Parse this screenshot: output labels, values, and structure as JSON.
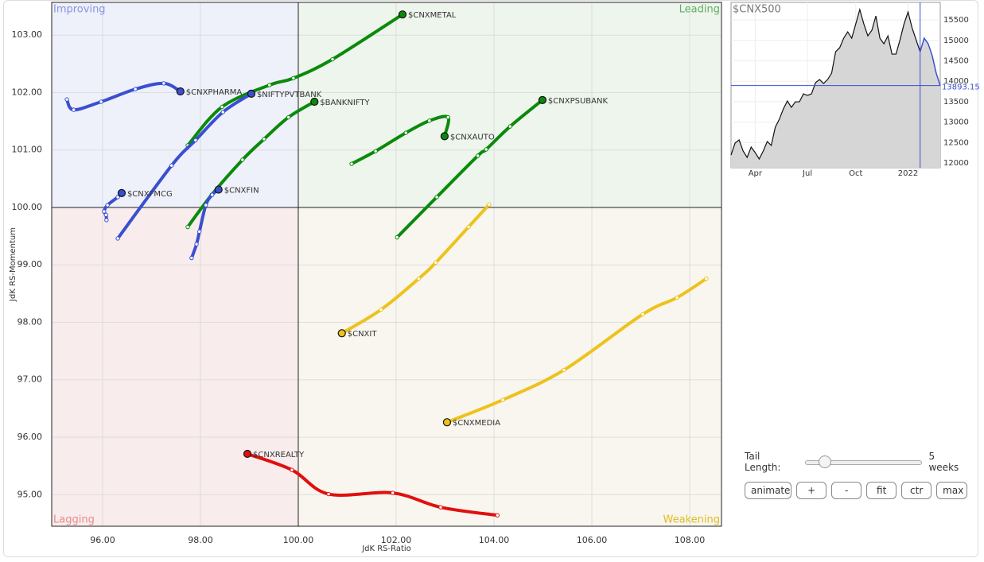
{
  "chart_data": [
    {
      "type": "rrg",
      "xlabel": "JdK RS-Ratio",
      "ylabel": "JdK RS-Momentum",
      "quadrants": [
        {
          "name": "Improving",
          "color": "#8a94e0",
          "fill": "#eef0fa"
        },
        {
          "name": "Leading",
          "color": "#5fae5f",
          "fill": "#edf5ed"
        },
        {
          "name": "Lagging",
          "color": "#e88a8a",
          "fill": "#f8ecec"
        },
        {
          "name": "Weakening",
          "color": "#e2bb22",
          "fill": "#f8f6ee"
        }
      ],
      "xlim": [
        94.96,
        108.65
      ],
      "ylim": [
        94.45,
        103.57
      ],
      "center": [
        100,
        100
      ],
      "grid": true,
      "xticks": [
        {
          "value": 96,
          "label": "96.00"
        },
        {
          "value": 98,
          "label": "98.00"
        },
        {
          "value": 100,
          "label": "100.00"
        },
        {
          "value": 102,
          "label": "102.00"
        },
        {
          "value": 104,
          "label": "104.00"
        },
        {
          "value": 106,
          "label": "106.00"
        },
        {
          "value": 108,
          "label": "108.00"
        }
      ],
      "yticks": [
        {
          "value": 95,
          "label": "95.00"
        },
        {
          "value": 96,
          "label": "96.00"
        },
        {
          "value": 97,
          "label": "97.00"
        },
        {
          "value": 98,
          "label": "98.00"
        },
        {
          "value": 99,
          "label": "99.00"
        },
        {
          "value": 100,
          "label": "100.00"
        },
        {
          "value": 101,
          "label": "101.00"
        },
        {
          "value": 102,
          "label": "102.00"
        },
        {
          "value": 103,
          "label": "103.00"
        }
      ],
      "series": [
        {
          "name": "$CNXMETAL",
          "color": "#0a8a0a",
          "x": [
            97.74,
            98.44,
            99.41,
            99.9,
            100.7,
            102.13
          ],
          "y": [
            101.08,
            101.75,
            102.13,
            102.25,
            102.58,
            103.36
          ]
        },
        {
          "name": "$CNXPHARMA",
          "color": "#3a4fd0",
          "x": [
            95.27,
            95.41,
            95.97,
            96.67,
            97.25,
            97.59
          ],
          "y": [
            101.88,
            101.7,
            101.84,
            102.06,
            102.16,
            102.02
          ]
        },
        {
          "name": "$NIFTYPVTBANK",
          "color": "#3a4fd0",
          "x": [
            96.31,
            97.41,
            97.9,
            98.46,
            99.04
          ],
          "y": [
            99.46,
            100.73,
            101.17,
            101.66,
            101.98
          ]
        },
        {
          "name": "$BANKNIFTY",
          "color": "#0a8a0a",
          "x": [
            97.74,
            98.23,
            98.86,
            99.3,
            99.8,
            100.33
          ],
          "y": [
            99.66,
            100.22,
            100.83,
            101.19,
            101.57,
            101.84
          ]
        },
        {
          "name": "$CNXFIN",
          "color": "#3a4fd0",
          "x": [
            97.82,
            97.92,
            97.98,
            98.11,
            98.24,
            98.37
          ],
          "y": [
            99.12,
            99.36,
            99.58,
            100.04,
            100.22,
            100.31
          ]
        },
        {
          "name": "$CNXFMCG",
          "color": "#3a4fd0",
          "x": [
            96.08,
            96.07,
            96.03,
            96.1,
            96.31,
            96.39
          ],
          "y": [
            99.78,
            99.87,
            99.93,
            100.04,
            100.18,
            100.25
          ]
        },
        {
          "name": "$CNXAUTO",
          "color": "#0a8a0a",
          "x": [
            101.09,
            101.58,
            102.2,
            102.68,
            103.06,
            102.99
          ],
          "y": [
            100.76,
            100.98,
            101.3,
            101.51,
            101.57,
            101.24
          ]
        },
        {
          "name": "$CNXPSUBANK",
          "color": "#0a8a0a",
          "x": [
            102.02,
            102.83,
            103.67,
            103.84,
            104.33,
            104.99
          ],
          "y": [
            99.48,
            100.18,
            100.9,
            101.01,
            101.41,
            101.87
          ]
        },
        {
          "name": "$CNXIT",
          "color": "#eec21c",
          "x": [
            103.9,
            103.48,
            102.81,
            102.46,
            101.69,
            100.89
          ],
          "y": [
            100.05,
            99.66,
            99.04,
            98.76,
            98.22,
            97.81
          ]
        },
        {
          "name": "$CNXMEDIA",
          "color": "#eec21c",
          "x": [
            108.34,
            107.74,
            107.04,
            105.43,
            104.18,
            103.04
          ],
          "y": [
            98.76,
            98.43,
            98.14,
            97.17,
            96.65,
            96.26
          ]
        },
        {
          "name": "$CNXREALTY",
          "color": "#e01010",
          "x": [
            104.07,
            102.91,
            101.93,
            100.62,
            99.87,
            98.96
          ],
          "y": [
            94.64,
            94.78,
            95.03,
            95.01,
            95.43,
            95.71
          ]
        }
      ]
    },
    {
      "type": "line",
      "title": "$CNX500",
      "color": "#111111",
      "highlight_color": "#3a4fd0",
      "marker_x": 47,
      "xlim": [
        0,
        52
      ],
      "ylim": [
        11883,
        15930
      ],
      "xticks": [
        {
          "value": 6,
          "label": "Apr"
        },
        {
          "value": 19,
          "label": "Jul"
        },
        {
          "value": 31,
          "label": "Oct"
        },
        {
          "value": 44,
          "label": "2022"
        }
      ],
      "yticks": [
        12000,
        12500,
        13000,
        13500,
        14000,
        14500,
        15000,
        15500
      ],
      "values": [
        12194,
        12486,
        12564,
        12292,
        12136,
        12389,
        12253,
        12097,
        12292,
        12525,
        12428,
        12875,
        13069,
        13322,
        13517,
        13361,
        13497,
        13497,
        13692,
        13653,
        13692,
        13964,
        14042,
        13944,
        14042,
        14197,
        14722,
        14819,
        15053,
        15208,
        15053,
        15403,
        15753,
        15403,
        15111,
        15247,
        15597,
        15053,
        14917,
        15111,
        14664,
        14664,
        15014,
        15403,
        15694,
        15306,
        15014,
        14722,
        15053,
        14917,
        14625,
        14197,
        13893.15
      ]
    }
  ],
  "controls": {
    "tail_label": "Tail Length:",
    "tail_value": "5 weeks",
    "buttons": [
      "animate",
      "+",
      "-",
      "fit",
      "ctr",
      "max"
    ]
  }
}
